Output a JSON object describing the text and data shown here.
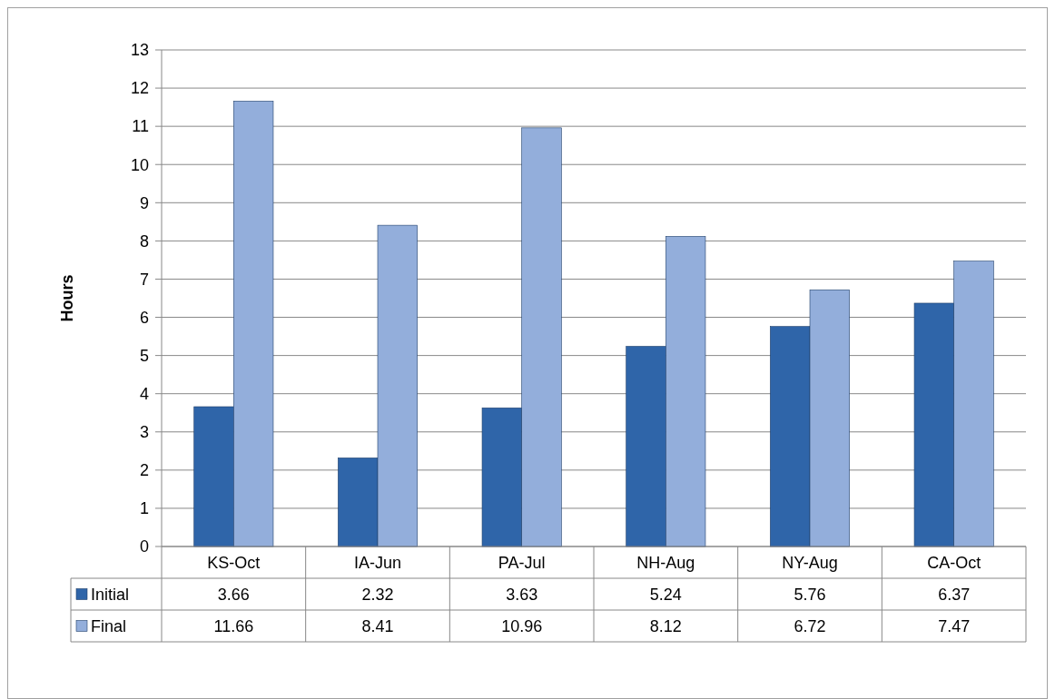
{
  "chart_data": {
    "type": "bar",
    "ylabel": "Hours",
    "categories": [
      "KS-Oct",
      "IA-Jun",
      "PA-Jul",
      "NH-Aug",
      "NY-Aug",
      "CA-Oct"
    ],
    "series": [
      {
        "name": "Initial",
        "color": "#2f65a9",
        "values": [
          3.66,
          2.32,
          3.63,
          5.24,
          5.76,
          6.37
        ]
      },
      {
        "name": "Final",
        "color": "#93aedb",
        "values": [
          11.66,
          8.41,
          10.96,
          8.12,
          6.72,
          7.47
        ]
      }
    ],
    "ylim": [
      0,
      13
    ],
    "yticks": [
      0,
      1,
      2,
      3,
      4,
      5,
      6,
      7,
      8,
      9,
      10,
      11,
      12,
      13
    ],
    "grid": "y",
    "legend": "bottom",
    "data_labels": true
  }
}
